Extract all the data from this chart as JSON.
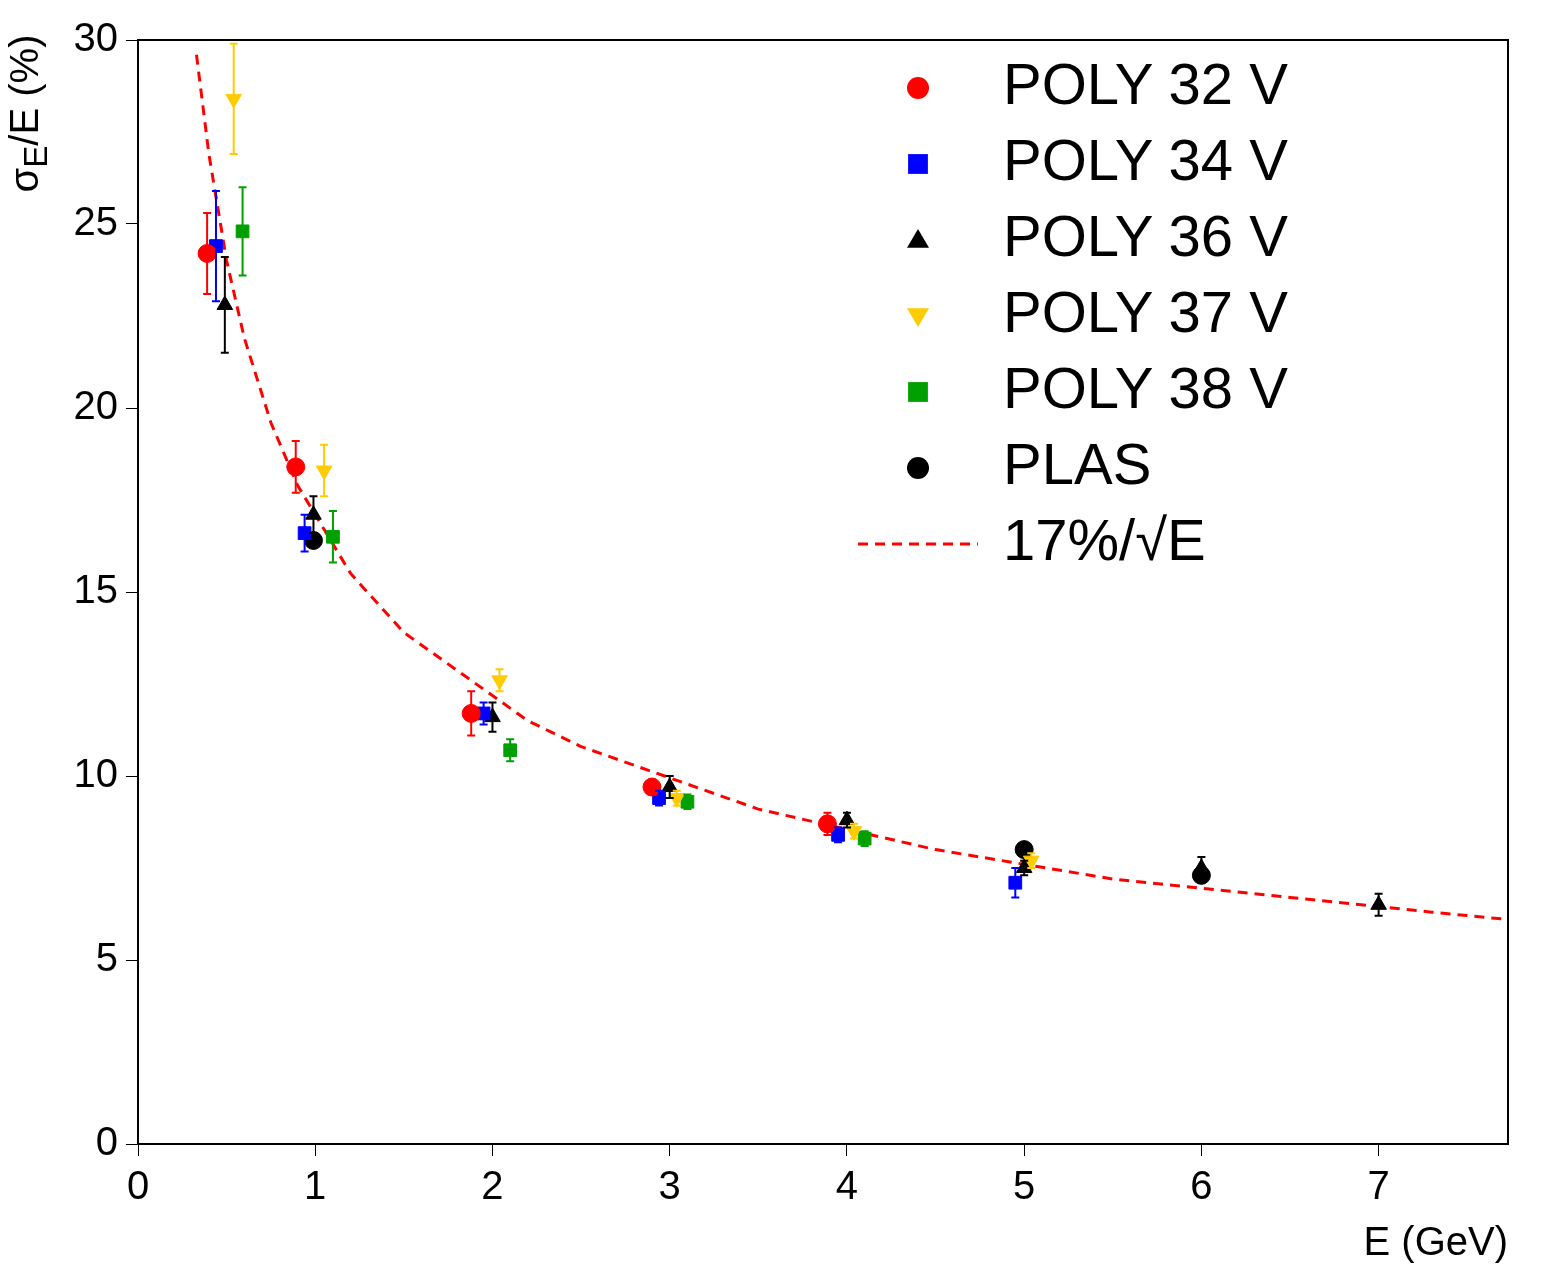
{
  "chart_data": {
    "type": "scatter",
    "xlabel": "E (GeV)",
    "ylabel": "σ$_{E}$/E (%)",
    "xlim": [
      0,
      7.73
    ],
    "ylim": [
      0,
      30
    ],
    "xticks": [
      0,
      1,
      2,
      3,
      4,
      5,
      6,
      7
    ],
    "yticks": [
      0,
      5,
      10,
      15,
      20,
      25,
      30
    ],
    "grid": false,
    "legend": "top right",
    "series": [
      {
        "name": "POLY 32 V",
        "color": "#ff0000",
        "marker": "circle",
        "x": [
          0.39,
          0.89,
          1.88,
          2.9,
          3.89
        ],
        "values": [
          24.2,
          18.4,
          11.7,
          9.7,
          8.7
        ],
        "errors": [
          1.1,
          0.7,
          0.6,
          0.2,
          0.3
        ]
      },
      {
        "name": "POLY 34 V",
        "color": "#0000ff",
        "marker": "square",
        "x": [
          0.44,
          0.94,
          1.95,
          2.94,
          3.95,
          4.95
        ],
        "values": [
          24.4,
          16.6,
          11.7,
          9.4,
          8.4,
          7.1
        ],
        "errors": [
          1.5,
          0.5,
          0.3,
          0.2,
          0.2,
          0.4
        ]
      },
      {
        "name": "POLY 36 V",
        "color": "#000000",
        "marker": "triangle",
        "x": [
          0.49,
          0.99,
          2.0,
          3.0,
          4.0,
          5.0,
          6.0,
          7.0
        ],
        "values": [
          22.8,
          17.1,
          11.6,
          9.7,
          8.8,
          7.5,
          7.5,
          6.5
        ],
        "errors": [
          1.3,
          0.5,
          0.4,
          0.3,
          0.2,
          0.2,
          0.3,
          0.3
        ]
      },
      {
        "name": "POLY 37 V",
        "color": "#ffcc00",
        "marker": "triangle-down",
        "x": [
          0.54,
          1.05,
          2.04,
          3.04,
          4.04,
          5.04
        ],
        "values": [
          28.4,
          18.3,
          12.6,
          9.4,
          8.5,
          7.7
        ],
        "errors": [
          1.5,
          0.7,
          0.3,
          0.2,
          0.2,
          0.2
        ]
      },
      {
        "name": "POLY 38 V",
        "color": "#00a000",
        "marker": "square",
        "x": [
          0.59,
          1.1,
          2.1,
          3.1,
          4.1
        ],
        "values": [
          24.8,
          16.5,
          10.7,
          9.3,
          8.3
        ],
        "errors": [
          1.2,
          0.7,
          0.3,
          0.2,
          0.2
        ]
      },
      {
        "name": "PLAS",
        "color": "#000000",
        "marker": "circle",
        "x": [
          0.99,
          5.0,
          6.0
        ],
        "values": [
          16.4,
          8.0,
          7.3
        ]
      },
      {
        "name": "17%/√E",
        "type": "line",
        "color": "#ff0000",
        "line_style": "dashed",
        "marker": "none",
        "x": [
          0.33,
          0.4,
          0.5,
          0.6,
          0.75,
          0.9,
          1.2,
          1.5,
          2.2,
          2.5,
          3.5,
          4.5,
          5.5,
          6.5,
          7.3,
          7.73
        ],
        "values": [
          29.6,
          26.9,
          24.0,
          21.9,
          19.6,
          17.9,
          15.5,
          13.9,
          11.5,
          10.8,
          9.1,
          8.0,
          7.2,
          6.7,
          6.3,
          6.1
        ]
      }
    ]
  }
}
